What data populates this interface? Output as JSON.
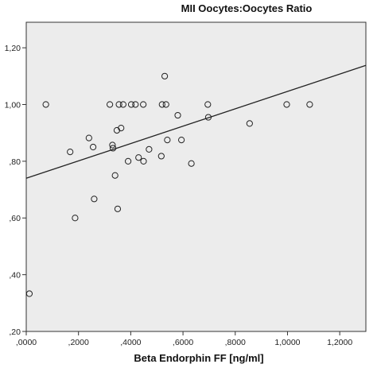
{
  "chart_data": {
    "type": "scatter",
    "title": "MII Oocytes:Oocytes Ratio",
    "xlabel": "Beta Endorphin FF [ng/ml]",
    "ylabel": "",
    "xlim": [
      0.0,
      1.3
    ],
    "ylim": [
      0.2,
      1.29
    ],
    "xticks": [
      0.0,
      0.2,
      0.4,
      0.6,
      0.8,
      1.0,
      1.2
    ],
    "xtick_labels": [
      ",0000",
      ",2000",
      ",4000",
      ",6000",
      ",8000",
      "1,0000",
      "1,2000"
    ],
    "yticks": [
      0.2,
      0.4,
      0.6,
      0.8,
      1.0,
      1.2
    ],
    "ytick_labels": [
      ",20",
      ",40",
      ",60",
      ",80",
      "1,00",
      "1,20"
    ],
    "grid": false,
    "background": "#ececec",
    "marker_color": "#222222",
    "line_color": "#222222",
    "points": [
      {
        "x": 0.012,
        "y": 0.333
      },
      {
        "x": 0.075,
        "y": 1.0
      },
      {
        "x": 0.168,
        "y": 0.833
      },
      {
        "x": 0.187,
        "y": 0.6
      },
      {
        "x": 0.24,
        "y": 0.882
      },
      {
        "x": 0.256,
        "y": 0.85
      },
      {
        "x": 0.26,
        "y": 0.667
      },
      {
        "x": 0.32,
        "y": 1.0
      },
      {
        "x": 0.33,
        "y": 0.857
      },
      {
        "x": 0.332,
        "y": 0.846
      },
      {
        "x": 0.34,
        "y": 0.75
      },
      {
        "x": 0.347,
        "y": 0.909
      },
      {
        "x": 0.35,
        "y": 0.632
      },
      {
        "x": 0.355,
        "y": 1.0
      },
      {
        "x": 0.363,
        "y": 0.917
      },
      {
        "x": 0.371,
        "y": 1.0
      },
      {
        "x": 0.39,
        "y": 0.8
      },
      {
        "x": 0.402,
        "y": 1.0
      },
      {
        "x": 0.418,
        "y": 1.0
      },
      {
        "x": 0.43,
        "y": 0.813
      },
      {
        "x": 0.448,
        "y": 1.0
      },
      {
        "x": 0.449,
        "y": 0.8
      },
      {
        "x": 0.47,
        "y": 0.842
      },
      {
        "x": 0.517,
        "y": 0.818
      },
      {
        "x": 0.52,
        "y": 1.0
      },
      {
        "x": 0.53,
        "y": 1.1
      },
      {
        "x": 0.535,
        "y": 1.0
      },
      {
        "x": 0.54,
        "y": 0.875
      },
      {
        "x": 0.58,
        "y": 0.962
      },
      {
        "x": 0.594,
        "y": 0.875
      },
      {
        "x": 0.632,
        "y": 0.792
      },
      {
        "x": 0.695,
        "y": 1.0
      },
      {
        "x": 0.697,
        "y": 0.955
      },
      {
        "x": 0.855,
        "y": 0.933
      },
      {
        "x": 0.997,
        "y": 1.0
      },
      {
        "x": 1.085,
        "y": 1.0
      }
    ],
    "fit_line": {
      "x": [
        0.0,
        1.3
      ],
      "y": [
        0.74,
        1.138
      ]
    }
  }
}
